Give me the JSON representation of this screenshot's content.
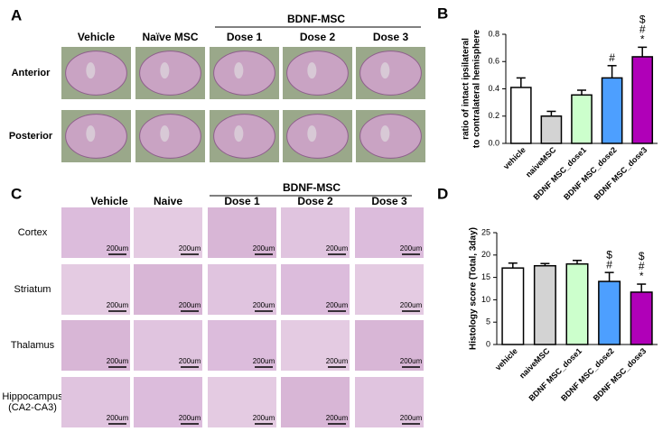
{
  "panel_a": {
    "label": "A",
    "group": "BDNF-MSC",
    "columns": [
      "Vehicle",
      "Naïve MSC",
      "Dose 1",
      "Dose 2",
      "Dose 3"
    ],
    "rows": [
      "Anterior",
      "Posterior"
    ]
  },
  "panel_c": {
    "label": "C",
    "group": "BDNF-MSC",
    "columns": [
      "Vehicle",
      "Naive",
      "Dose 1",
      "Dose 2",
      "Dose 3"
    ],
    "rows": [
      [
        "Cortex"
      ],
      [
        "Striatum"
      ],
      [
        "Thalamus"
      ],
      [
        "Hippocampus",
        "(CA2-CA3)"
      ]
    ],
    "scale_bar": "200um"
  },
  "chart_data": [
    {
      "type": "bar",
      "panel_label": "B",
      "ylabel": [
        "ratio of intact ipsilateral",
        "to contralateral hemisphere"
      ],
      "categories": [
        "vehicle",
        "naiveMSC",
        "BDNF MSC_dose1",
        "BDNF MSC_dose2",
        "BDNF MSC_dose3"
      ],
      "values": [
        0.41,
        0.2,
        0.355,
        0.48,
        0.635
      ],
      "errors": [
        0.07,
        0.035,
        0.035,
        0.09,
        0.07
      ],
      "colors": [
        "#ffffff",
        "#d3d3d3",
        "#ccffcc",
        "#4d9fff",
        "#b000b8"
      ],
      "annotations": [
        null,
        null,
        null,
        [
          "#"
        ],
        [
          "$",
          "#",
          "*"
        ]
      ],
      "ylim": [
        0,
        0.8
      ],
      "yticks": [
        {
          "value": 0,
          "label": "0.0"
        },
        0.2,
        0.4,
        0.6,
        0.8
      ]
    },
    {
      "type": "bar",
      "panel_label": "D",
      "ylabel": [
        "Histology score (Total, 3day)"
      ],
      "categories": [
        "vehicle",
        "naiveMSC",
        "BDNF MSC_dose1",
        "BDNF MSC_dose2",
        "BDNF MSC_dose3"
      ],
      "values": [
        17.1,
        17.6,
        18.0,
        14.1,
        11.7
      ],
      "errors": [
        1.1,
        0.5,
        0.8,
        2.0,
        1.8
      ],
      "colors": [
        "#ffffff",
        "#d3d3d3",
        "#ccffcc",
        "#4d9fff",
        "#b000b8"
      ],
      "annotations": [
        null,
        null,
        null,
        [
          "$",
          "#"
        ],
        [
          "$",
          "#",
          "*"
        ]
      ],
      "ylim": [
        0,
        25
      ],
      "yticks": [
        0,
        5,
        10,
        15,
        20,
        25
      ]
    }
  ]
}
